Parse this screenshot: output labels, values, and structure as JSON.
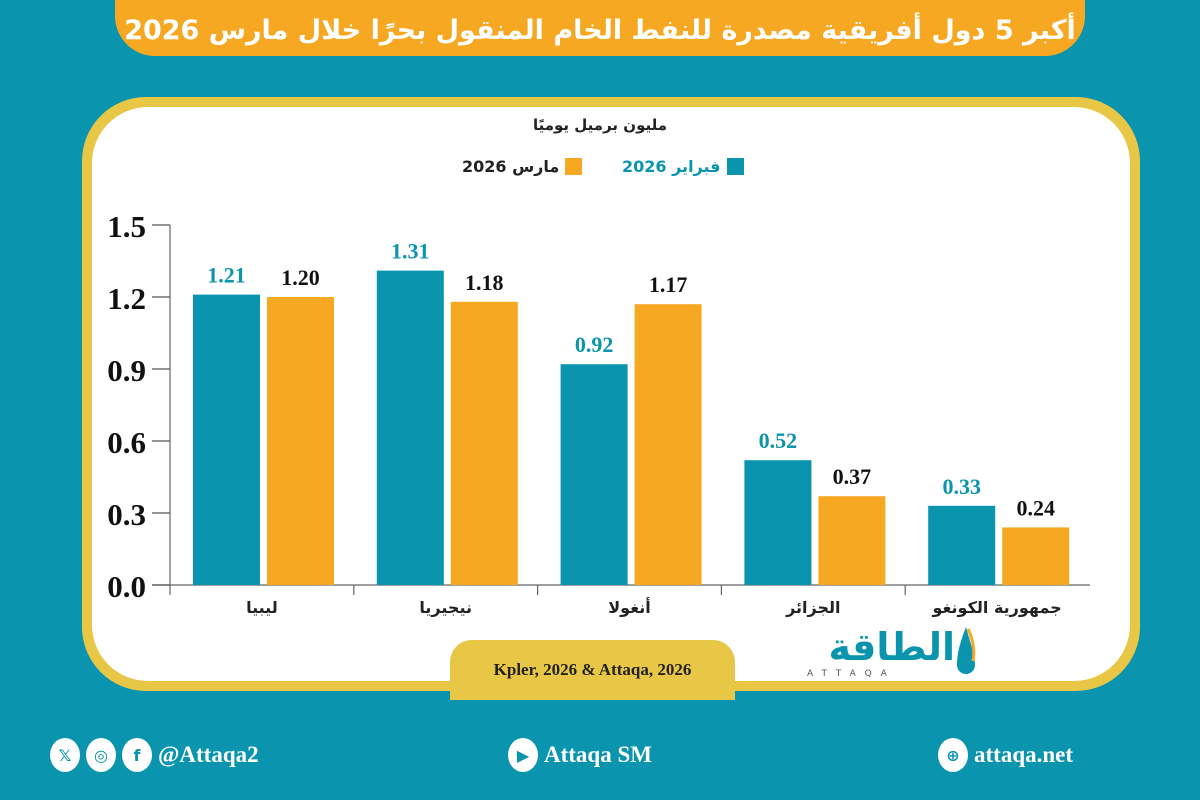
{
  "title": "أكبر 5 دول أفريقية مصدرة للنفط الخام المنقول بحرًا خلال مارس 2026",
  "colors": {
    "background": "#0a94ad",
    "february": "#0a94ad",
    "march": "#f7a823",
    "frame": "#e8c646"
  },
  "chart_data": {
    "type": "bar",
    "ylabel": "مليون برميل يوميًا",
    "categories": [
      "ليبيا",
      "نيجيريا",
      "أنغولا",
      "الجزائر",
      "جمهورية الكونغو"
    ],
    "series": [
      {
        "name": "فبراير 2026",
        "color": "#0a94ad",
        "values": [
          1.21,
          1.31,
          0.92,
          0.52,
          0.33
        ],
        "labels": [
          "1.21",
          "1.31",
          "0.92",
          "0.52",
          "0.33"
        ]
      },
      {
        "name": "مارس 2026",
        "color": "#f7a823",
        "values": [
          1.2,
          1.18,
          1.17,
          0.37,
          0.24
        ],
        "labels": [
          "1.20",
          "1.18",
          "1.17",
          "0.37",
          "0.24"
        ]
      }
    ],
    "ylim": [
      0,
      1.5
    ],
    "yticks": [
      "0.0",
      "0.3",
      "0.6",
      "0.9",
      "1.2",
      "1.5"
    ],
    "grid": false,
    "legend": "top-center"
  },
  "source": "Kpler, 2026 & Attaqa, 2026",
  "logo": {
    "arabic": "الطاقة",
    "latin": "ATTAQA"
  },
  "footer": {
    "social_handle": "@Attaqa2",
    "youtube": "Attaqa SM",
    "website": "attaqa.net"
  }
}
